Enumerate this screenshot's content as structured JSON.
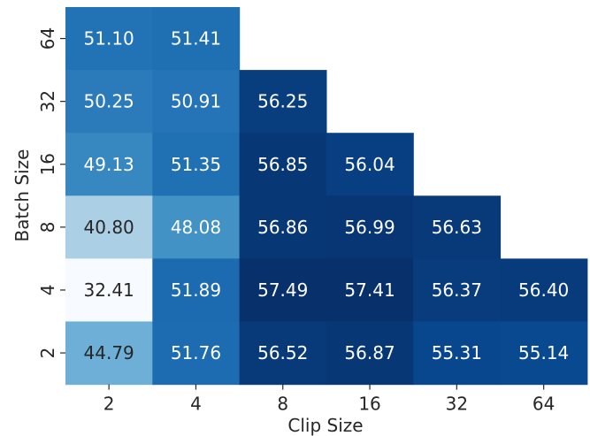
{
  "chart_data": {
    "type": "heatmap",
    "title": "",
    "xlabel": "Clip Size",
    "ylabel": "Batch Size",
    "x_categories": [
      "2",
      "4",
      "8",
      "16",
      "32",
      "64"
    ],
    "y_categories": [
      "64",
      "32",
      "16",
      "8",
      "4",
      "2"
    ],
    "values": [
      [
        51.1,
        51.41,
        null,
        null,
        null,
        null
      ],
      [
        50.25,
        50.91,
        56.25,
        null,
        null,
        null
      ],
      [
        49.13,
        51.35,
        56.85,
        56.04,
        null,
        null
      ],
      [
        40.8,
        48.08,
        56.86,
        56.99,
        56.63,
        null
      ],
      [
        32.41,
        51.89,
        57.49,
        57.41,
        56.37,
        56.4
      ],
      [
        44.79,
        51.76,
        56.52,
        56.87,
        55.31,
        55.14
      ]
    ],
    "colormap": "Blues",
    "grid": false,
    "colorbar": false
  }
}
